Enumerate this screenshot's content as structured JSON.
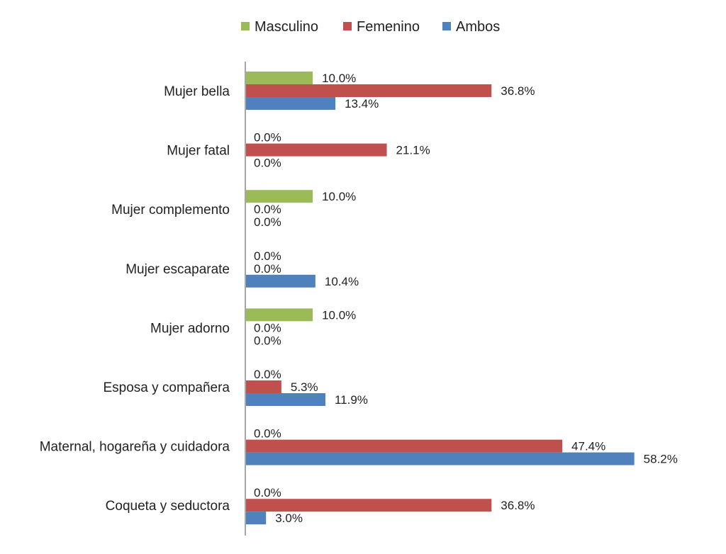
{
  "chart_data": {
    "type": "bar",
    "orientation": "horizontal",
    "categories": [
      "Mujer bella",
      "Mujer fatal",
      "Mujer complemento",
      "Mujer escaparate",
      "Mujer adorno",
      "Esposa y compañera",
      "Maternal, hogareña y cuidadora",
      "Coqueta y seductora"
    ],
    "series": [
      {
        "name": "Masculino",
        "color": "#9BBB59",
        "values": [
          10.0,
          0.0,
          10.0,
          0.0,
          10.0,
          0.0,
          0.0,
          0.0
        ],
        "labels": [
          "10.0%",
          "0.0%",
          "10.0%",
          "0.0%",
          "10.0%",
          "0.0%",
          "0.0%",
          "0.0%"
        ]
      },
      {
        "name": "Femenino",
        "color": "#C0504D",
        "values": [
          36.8,
          21.1,
          0.0,
          0.0,
          0.0,
          5.3,
          47.4,
          36.8
        ],
        "labels": [
          "36.8%",
          "21.1%",
          "0.0%",
          "0.0%",
          "0.0%",
          "5.3%",
          "47.4%",
          "36.8%"
        ]
      },
      {
        "name": "Ambos",
        "color": "#4F81BD",
        "values": [
          13.4,
          0.0,
          0.0,
          10.4,
          0.0,
          11.9,
          58.2,
          3.0
        ],
        "labels": [
          "13.4%",
          "0.0%",
          "0.0%",
          "10.4%",
          "0.0%",
          "11.9%",
          "58.2%",
          "3.0%"
        ]
      }
    ],
    "legend_position": "top",
    "grid": false
  }
}
